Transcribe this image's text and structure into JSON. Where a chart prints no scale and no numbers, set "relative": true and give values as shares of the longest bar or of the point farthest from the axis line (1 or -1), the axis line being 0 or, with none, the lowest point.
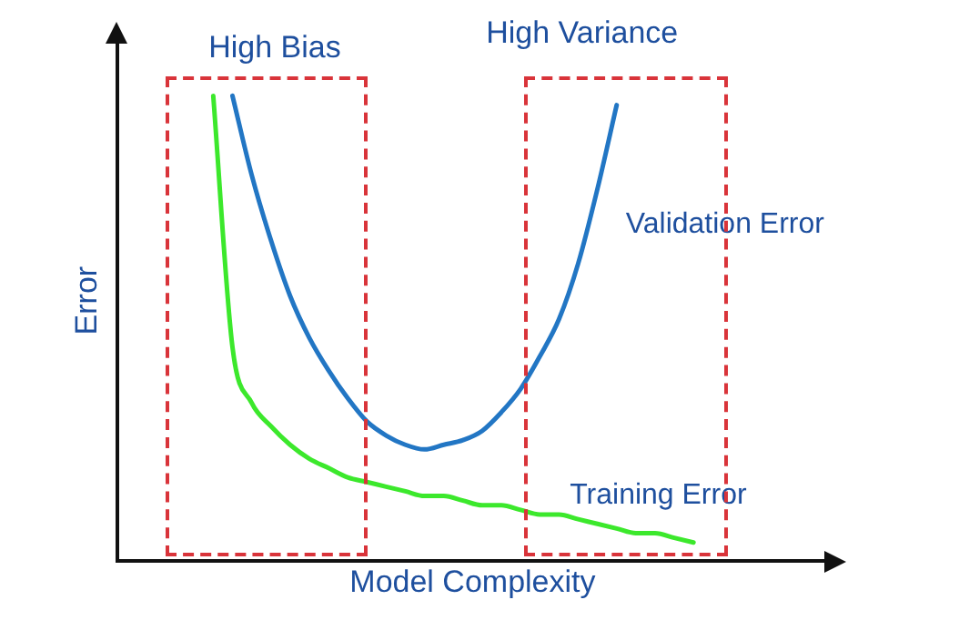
{
  "chart_data": {
    "type": "line",
    "relative": true,
    "xlabel": "Model Complexity",
    "ylabel": "Error",
    "categories": [
      null,
      null,
      null,
      null,
      null,
      null,
      null,
      null,
      null,
      null,
      null,
      null,
      null,
      null,
      null,
      null,
      null,
      null,
      null,
      null,
      null,
      null,
      null,
      null,
      null,
      null,
      null,
      null,
      null,
      null,
      null,
      null,
      null,
      null,
      null,
      null,
      null,
      null
    ],
    "series": [
      {
        "name": "Validation Error",
        "color": "#2276c4",
        "values": [
          null,
          null,
          null,
          null,
          null,
          null,
          1.0,
          0.83,
          0.69,
          0.57,
          0.48,
          0.41,
          0.35,
          0.3,
          0.27,
          0.25,
          0.24,
          0.25,
          0.26,
          0.28,
          0.32,
          0.37,
          0.44,
          0.52,
          0.64,
          0.8,
          0.98,
          null,
          null,
          null,
          null,
          null,
          null,
          null,
          null,
          null,
          null,
          null
        ]
      },
      {
        "name": "Training Error",
        "color": "#3ce82c",
        "values": [
          null,
          null,
          null,
          null,
          null,
          1.0,
          0.46,
          0.34,
          0.29,
          0.25,
          0.22,
          0.2,
          0.18,
          0.17,
          0.16,
          0.15,
          0.14,
          0.14,
          0.13,
          0.12,
          0.12,
          0.11,
          0.1,
          0.1,
          0.09,
          0.08,
          0.07,
          0.06,
          0.06,
          0.05,
          0.04,
          null,
          null,
          null,
          null,
          null,
          null,
          null
        ]
      }
    ],
    "annotations": [
      "High Bias",
      "High Variance"
    ],
    "legend": false,
    "grid": false,
    "marker": "none",
    "line_style": "solid"
  }
}
